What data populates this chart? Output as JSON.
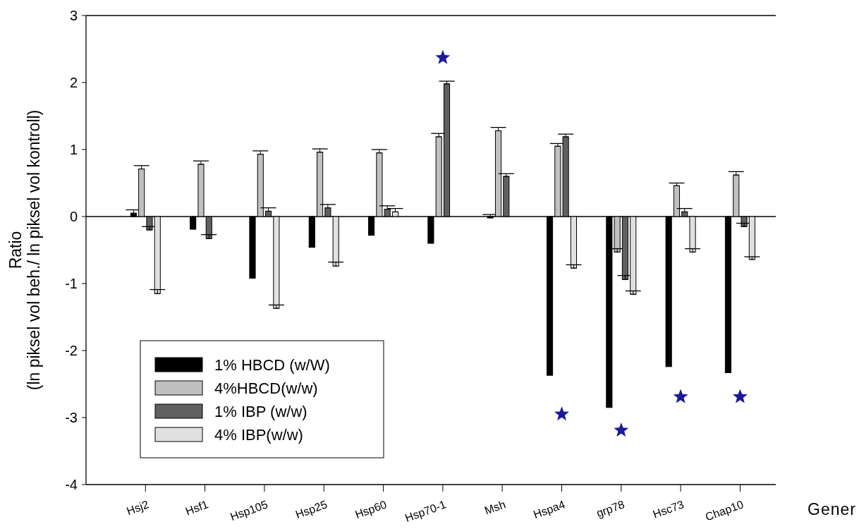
{
  "chart_data": {
    "type": "bar",
    "xlabel": "Gener",
    "ylabel": "Ratio\n(ln piksel vol beh./ ln piksel vol kontroll)",
    "categories": [
      "Hsj2",
      "Hsf1",
      "Hsp105",
      "Hsp25",
      "Hsp60",
      "Hsp70-1",
      "Msh",
      "Hspa4",
      "grp78",
      "Hsc73",
      "Chap10"
    ],
    "series": [
      {
        "name": "1% HBCD (w/W)",
        "color": "#000000",
        "values": [
          0.05,
          -0.19,
          -0.92,
          -0.46,
          -0.28,
          -0.4,
          -0.02,
          -2.37,
          -2.85,
          -2.24,
          -2.33
        ],
        "errors": [
          [
            0.05,
            0.1
          ],
          null,
          null,
          null,
          null,
          null,
          [
            -0.02,
            0.03
          ],
          null,
          null,
          null,
          null
        ]
      },
      {
        "name": "4%HBCD(w/w)",
        "color": "#c0c0c0",
        "values": [
          0.71,
          0.78,
          0.93,
          0.96,
          0.95,
          1.19,
          1.28,
          1.05,
          -0.53,
          0.46,
          0.62
        ],
        "errors": [
          [
            0.71,
            0.76
          ],
          [
            0.78,
            0.83
          ],
          [
            0.93,
            0.98
          ],
          [
            0.96,
            1.01
          ],
          [
            0.95,
            1.0
          ],
          [
            1.19,
            1.24
          ],
          [
            1.28,
            1.33
          ],
          [
            1.05,
            1.09
          ],
          [
            -0.53,
            -0.48
          ],
          [
            0.46,
            0.5
          ],
          [
            0.62,
            0.67
          ]
        ]
      },
      {
        "name": "1% IBP (w/w)",
        "color": "#606060",
        "values": [
          -0.2,
          -0.33,
          0.08,
          0.13,
          0.11,
          1.98,
          0.6,
          1.19,
          -0.94,
          0.07,
          -0.15
        ],
        "errors": [
          [
            -0.2,
            -0.15
          ],
          [
            -0.33,
            -0.27
          ],
          [
            0.08,
            0.13
          ],
          [
            0.13,
            0.18
          ],
          [
            0.11,
            0.16
          ],
          [
            1.98,
            2.02
          ],
          [
            0.6,
            0.64
          ],
          [
            1.19,
            1.23
          ],
          [
            -0.94,
            -0.88
          ],
          [
            0.07,
            0.12
          ],
          [
            -0.15,
            -0.1
          ]
        ]
      },
      {
        "name": "4% IBP(w/w)",
        "color": "#e0e0e0",
        "values": [
          -1.15,
          null,
          -1.37,
          -0.74,
          0.07,
          null,
          null,
          -0.77,
          -1.16,
          -0.53,
          -0.64
        ],
        "errors": [
          [
            -1.15,
            -1.09
          ],
          null,
          [
            -1.37,
            -1.32
          ],
          [
            -0.74,
            -0.68
          ],
          [
            0.07,
            0.12
          ],
          null,
          null,
          [
            -0.77,
            -0.72
          ],
          [
            -1.16,
            -1.11
          ],
          [
            -0.53,
            -0.48
          ],
          [
            -0.64,
            -0.6
          ]
        ]
      },
      {
        "type": "scatter",
        "marker": "star",
        "color": "#1a1a9a",
        "x": [
          "Hsp70-1",
          "Hspa4",
          "grp78",
          "Hsc73",
          "Chap10"
        ],
        "values": [
          2.37,
          -2.95,
          -3.19,
          -2.69,
          -2.69
        ]
      }
    ],
    "ylim": [
      -4,
      3
    ],
    "yticks": [
      -4,
      -3,
      -2,
      -1,
      0,
      1,
      2,
      3
    ],
    "ref_lines": [
      {
        "axis": "y",
        "value": 0
      }
    ],
    "grid": false,
    "legend": "bottom left"
  }
}
